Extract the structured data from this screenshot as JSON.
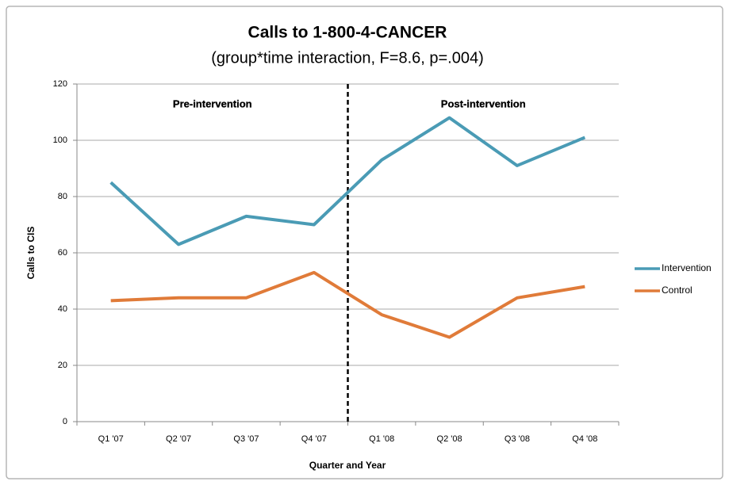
{
  "chart_data": {
    "type": "line",
    "title": "Calls to 1-800-4-CANCER",
    "subtitle": "(group*time interaction, F=8.6, p=.004)",
    "x_label": "Quarter and Year",
    "y_label": "Calls to CIS",
    "annotations": [
      "Pre-intervention",
      "Post-intervention"
    ],
    "categories": [
      "Q1 '07",
      "Q2 '07",
      "Q3 '07",
      "Q4 '07",
      "Q1 '08",
      "Q2 '08",
      "Q3 '08",
      "Q4 '08"
    ],
    "series": [
      {
        "name": "Intervention",
        "color": "#4a9bb5",
        "values": [
          85,
          63,
          73,
          70,
          93,
          108,
          91,
          101
        ]
      },
      {
        "name": "Control",
        "color": "#e07b39",
        "values": [
          43,
          44,
          44,
          53,
          38,
          30,
          44,
          48
        ]
      }
    ],
    "ylim": [
      0,
      120
    ],
    "yticks": [
      0,
      20,
      40,
      60,
      80,
      100,
      120
    ],
    "grid": true,
    "legend": "right"
  }
}
